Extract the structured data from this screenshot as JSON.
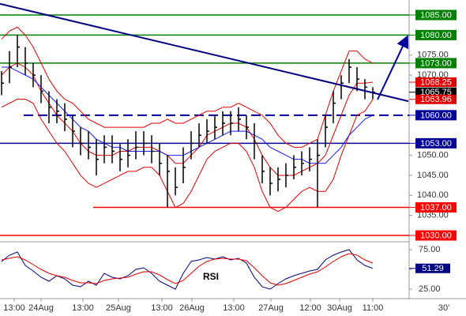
{
  "chart_data": {
    "type": "ohlc",
    "timeframe": "30'",
    "xlim": [
      -0.2,
      51.6
    ],
    "ylim": [
      1028.43,
      1088.75
    ],
    "yticks": [
      {
        "value": 1075,
        "label": "1075.00"
      },
      {
        "value": 1070,
        "label": "1070.00"
      },
      {
        "value": 1050,
        "label": "1050.00"
      },
      {
        "value": 1045,
        "label": "1045.00"
      },
      {
        "value": 1040,
        "label": "1040.00"
      },
      {
        "value": 1035,
        "label": "1035.00"
      }
    ],
    "xticks": [
      {
        "value": 1.6,
        "label": "13:00"
      },
      {
        "value": 5,
        "label": "24Aug"
      },
      {
        "value": 10.3,
        "label": "13:00"
      },
      {
        "value": 14.8,
        "label": "25Aug"
      },
      {
        "value": 20.3,
        "label": "13:00"
      },
      {
        "value": 24.1,
        "label": "26Aug"
      },
      {
        "value": 29.4,
        "label": "13:00"
      },
      {
        "value": 34.1,
        "label": "27Aug"
      },
      {
        "value": 39.1,
        "label": "12:00"
      },
      {
        "value": 42.8,
        "label": "30Aug"
      },
      {
        "value": 47,
        "label": "11:00"
      }
    ],
    "bar_color": "#000000",
    "highs": [
      1071,
      1076,
      1080,
      1077,
      1073,
      1070,
      1066,
      1064,
      1063,
      1060,
      1057,
      1056,
      1054,
      1055,
      1055,
      1053,
      1054,
      1056,
      1056,
      1055,
      1053,
      1050,
      1047,
      1052,
      1056,
      1058,
      1059,
      1060,
      1061,
      1061,
      1062,
      1060,
      1058,
      1050,
      1047,
      1047,
      1048,
      1050,
      1051,
      1052,
      1054,
      1060,
      1066,
      1070,
      1074,
      1072,
      1069,
      1067
    ],
    "lows": [
      1065,
      1068,
      1072,
      1070,
      1067,
      1063,
      1058,
      1058,
      1056,
      1052,
      1050,
      1049,
      1045,
      1048,
      1048,
      1046,
      1047,
      1049,
      1050,
      1048,
      1045,
      1037,
      1040,
      1043,
      1049,
      1052,
      1053,
      1054,
      1055,
      1055,
      1056,
      1054,
      1049,
      1043,
      1040,
      1041,
      1042,
      1044,
      1045,
      1046,
      1037,
      1052,
      1058,
      1064,
      1068,
      1066,
      1064,
      1064
    ],
    "closes": [
      1068,
      1072,
      1077,
      1073,
      1070,
      1066,
      1062,
      1061,
      1059,
      1056,
      1053,
      1052,
      1049,
      1052,
      1051,
      1049,
      1050,
      1052,
      1053,
      1051,
      1048,
      1046,
      1042,
      1047,
      1053,
      1055,
      1056,
      1057,
      1058,
      1058,
      1059,
      1057,
      1053,
      1046,
      1043,
      1044,
      1045,
      1047,
      1048,
      1049,
      1050,
      1057,
      1063,
      1068,
      1072,
      1069,
      1067,
      1065.75
    ],
    "overlays": [
      {
        "color": "#e00000",
        "values": [
          1079,
          1081,
          1082,
          1080,
          1077,
          1073,
          1069,
          1066,
          1064,
          1063,
          1061,
          1059,
          1058,
          1057,
          1057,
          1057,
          1057,
          1057,
          1057,
          1058,
          1058,
          1059,
          1058,
          1058,
          1059,
          1060,
          1061,
          1061,
          1062,
          1062,
          1063,
          1062,
          1061,
          1060,
          1058,
          1055,
          1053,
          1052,
          1052,
          1053,
          1054,
          1060,
          1066,
          1071,
          1076,
          1076,
          1074,
          1073
        ]
      },
      {
        "color": "#e00000",
        "values": [
          1062,
          1063,
          1064,
          1064,
          1063,
          1059,
          1056,
          1053,
          1051,
          1048,
          1045,
          1043,
          1042,
          1043,
          1044,
          1045,
          1046,
          1046,
          1047,
          1047,
          1045,
          1041,
          1037,
          1038,
          1041,
          1045,
          1049,
          1051,
          1052,
          1053,
          1053,
          1051,
          1047,
          1041,
          1037,
          1036,
          1037,
          1039,
          1041,
          1042,
          1041,
          1041,
          1044,
          1050,
          1055,
          1060,
          1061,
          1063.96
        ]
      },
      {
        "color": "#e00000",
        "values": [
          1070,
          1072,
          1073,
          1072,
          1070,
          1066,
          1063,
          1060,
          1058,
          1056,
          1053,
          1051,
          1050,
          1050,
          1050,
          1051,
          1051,
          1052,
          1052,
          1052,
          1051,
          1050,
          1048,
          1048,
          1050,
          1052,
          1055,
          1056,
          1057,
          1058,
          1058,
          1057,
          1054,
          1050,
          1047,
          1045,
          1045,
          1045,
          1046,
          1047,
          1048,
          1050,
          1055,
          1060,
          1065,
          1068,
          1068,
          1068.25
        ]
      },
      {
        "color": "#1a1aff",
        "values": [
          1072,
          1072,
          1071,
          1070,
          1069,
          1067,
          1065,
          1063,
          1061,
          1059,
          1057,
          1056,
          1054,
          1053,
          1052,
          1052,
          1051,
          1051,
          1051,
          1051,
          1051,
          1050,
          1050,
          1050,
          1051,
          1052,
          1053,
          1054,
          1055,
          1056,
          1056,
          1056,
          1055,
          1054,
          1052,
          1051,
          1050,
          1049,
          1049,
          1048,
          1048,
          1048,
          1050,
          1052,
          1055,
          1057,
          1059,
          1060
        ]
      }
    ],
    "levels": [
      {
        "value": 1085,
        "label": "1085.00",
        "color": "#008000"
      },
      {
        "value": 1080,
        "label": "1080.00",
        "color": "#008000"
      },
      {
        "value": 1073,
        "label": "1073.00",
        "color": "#008000"
      },
      {
        "value": 1060,
        "label": "1060.00",
        "color": "#000099",
        "dashed": true,
        "x_start": 2.8
      },
      {
        "value": 1053,
        "label": "1053.00",
        "color": "#000099"
      },
      {
        "value": 1037,
        "label": "1037.00",
        "color": "#ff0000",
        "x_start": 11.6
      },
      {
        "value": 1030,
        "label": "1030.00",
        "color": "#ff0000"
      }
    ],
    "price_markers": [
      {
        "value": 1068.25,
        "label": "1068.25",
        "color": "#e00000"
      },
      {
        "value": 1065.75,
        "label": "1065.75",
        "color": "#000000"
      },
      {
        "value": 1063.96,
        "label": "1063.96",
        "color": "#e00000"
      }
    ],
    "trendline": {
      "x": [
        -0.2,
        51.5
      ],
      "y": [
        1087.8,
        1063.5
      ],
      "color": "#000080"
    },
    "arrow": {
      "x": [
        47.6,
        51.3
      ],
      "y": [
        1063.9,
        1079.3
      ],
      "color": "#000099"
    },
    "rsi": {
      "label": "RSI",
      "ylim": [
        13,
        85
      ],
      "yticks": [
        {
          "value": 75,
          "label": "75.00"
        },
        {
          "value": 50,
          "label": "50.00"
        },
        {
          "value": 25,
          "label": "25.00"
        }
      ],
      "series": [
        {
          "color": "#000080",
          "values": [
            60,
            68,
            72,
            55,
            48,
            40,
            35,
            42,
            38,
            30,
            28,
            35,
            30,
            45,
            40,
            38,
            42,
            50,
            52,
            45,
            35,
            30,
            25,
            45,
            60,
            62,
            65,
            63,
            66,
            62,
            64,
            58,
            40,
            28,
            25,
            32,
            38,
            42,
            45,
            48,
            50,
            62,
            68,
            72,
            75,
            62,
            55,
            51.29
          ]
        },
        {
          "color": "#e00000",
          "values": [
            62,
            64,
            66,
            62,
            56,
            50,
            45,
            42,
            40,
            36,
            33,
            33,
            32,
            36,
            38,
            39,
            40,
            44,
            47,
            47,
            43,
            37,
            32,
            36,
            45,
            54,
            60,
            63,
            64,
            63,
            63,
            61,
            52,
            42,
            33,
            30,
            32,
            36,
            40,
            44,
            47,
            53,
            60,
            66,
            70,
            68,
            62,
            58
          ]
        }
      ],
      "marker": {
        "value": 51.29,
        "label": "51.29",
        "color": "#000080"
      }
    }
  }
}
